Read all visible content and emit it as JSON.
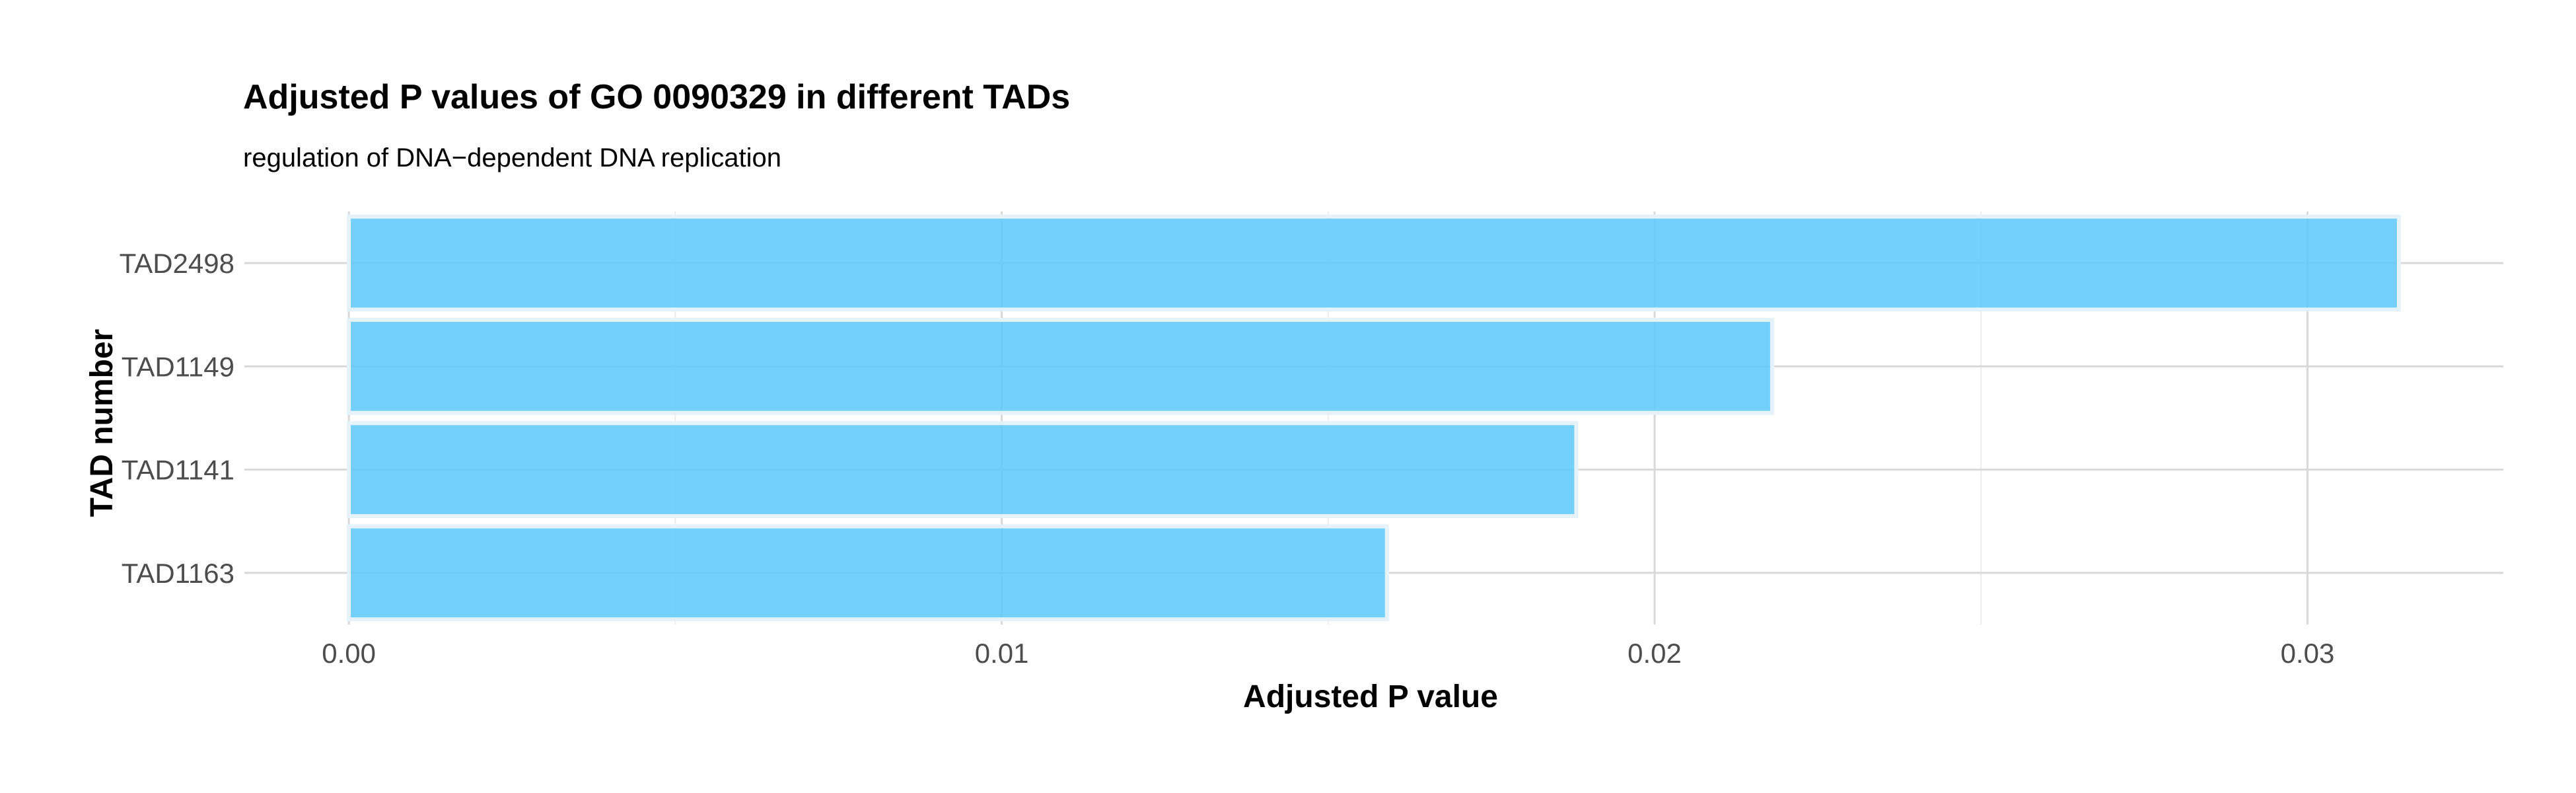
{
  "chart_data": {
    "type": "bar",
    "orientation": "horizontal",
    "title": "Adjusted P values of GO 0090329 in different TADs",
    "subtitle": "regulation of DNA−dependent DNA replication",
    "xlabel": "Adjusted P value",
    "ylabel": "TAD number",
    "categories": [
      "TAD2498",
      "TAD1149",
      "TAD1141",
      "TAD1163"
    ],
    "values": [
      0.0314,
      0.0218,
      0.0188,
      0.0159
    ],
    "xlim": [
      -0.0016,
      0.033
    ],
    "xticks": [
      0.0,
      0.01,
      0.02,
      0.03
    ],
    "xtick_labels": [
      "0.00",
      "0.01",
      "0.02",
      "0.03"
    ],
    "grid": true,
    "legend": "none",
    "bar_color": "#5AC8FA",
    "bar_outline_color": "#E6F2FA",
    "gridline_color": "#D9D9D9"
  }
}
